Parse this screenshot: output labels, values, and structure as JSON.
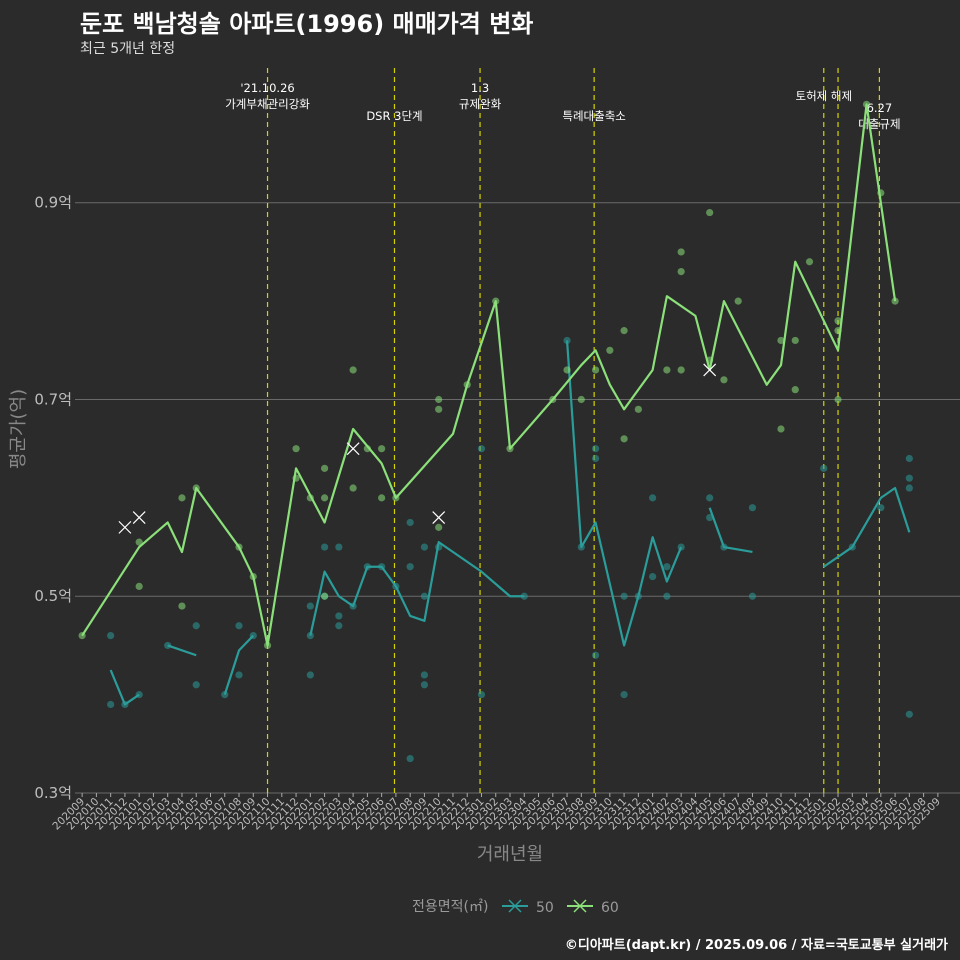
{
  "title": "둔포 백남청솔 아파트(1996) 매매가격 변화",
  "subtitle": "최근 5개년 한정",
  "caption": "©디아파트(dapt.kr) / 2025.09.06 / 자료=국토교통부 실거래가",
  "colors": {
    "background": "#2b2b2b",
    "s50": "#2a9d9a",
    "s60": "#8be07a",
    "event": "#d4d400",
    "grid": "#6a6a6a"
  },
  "chart_data": {
    "type": "line",
    "title": "둔포 백남청솔 아파트(1996) 매매가격 변화",
    "xlabel": "거래년월",
    "ylabel": "평균가(억)",
    "ylim": [
      0.3,
      1.04
    ],
    "yticks": [
      0.3,
      0.5,
      0.7,
      0.9
    ],
    "ytick_labels": [
      "0.3억",
      "0.5억",
      "0.7억",
      "0.9억"
    ],
    "x": [
      "202009",
      "202010",
      "202011",
      "202012",
      "202101",
      "202102",
      "202103",
      "202104",
      "202105",
      "202106",
      "202107",
      "202108",
      "202109",
      "202110",
      "202111",
      "202112",
      "202201",
      "202202",
      "202203",
      "202204",
      "202205",
      "202206",
      "202207",
      "202208",
      "202209",
      "202210",
      "202211",
      "202212",
      "202301",
      "202302",
      "202303",
      "202304",
      "202305",
      "202306",
      "202307",
      "202308",
      "202309",
      "202310",
      "202311",
      "202312",
      "202401",
      "202402",
      "202403",
      "202404",
      "202405",
      "202406",
      "202407",
      "202408",
      "202409",
      "202410",
      "202411",
      "202412",
      "202501",
      "202502",
      "202503",
      "202504",
      "202505",
      "202506",
      "202507",
      "202508",
      "202509"
    ],
    "legend_title": "전용면적(㎡)",
    "series": [
      {
        "name": "50",
        "color": "#2a9d9a",
        "line": [
          [
            2,
            0.425
          ],
          [
            3,
            0.39
          ],
          [
            4,
            0.4
          ],
          null,
          [
            6,
            0.45
          ],
          [
            8,
            0.44
          ],
          null,
          [
            10,
            0.4
          ],
          [
            11,
            0.445
          ],
          [
            12,
            0.46
          ],
          null,
          [
            16,
            0.46
          ],
          [
            17,
            0.525
          ],
          [
            18,
            0.5
          ],
          [
            19,
            0.49
          ],
          [
            20,
            0.53
          ],
          [
            21,
            0.53
          ],
          [
            22,
            0.51
          ],
          [
            23,
            0.48
          ],
          [
            24,
            0.475
          ],
          [
            25,
            0.555
          ],
          [
            28,
            0.525
          ],
          [
            30,
            0.5
          ],
          [
            31,
            0.5
          ],
          null,
          [
            34,
            0.76
          ],
          [
            35,
            0.55
          ],
          [
            36,
            0.575
          ],
          [
            38,
            0.45
          ],
          [
            39,
            0.5
          ],
          [
            40,
            0.56
          ],
          [
            41,
            0.515
          ],
          [
            42,
            0.55
          ],
          null,
          [
            44,
            0.59
          ],
          [
            45,
            0.55
          ],
          [
            47,
            0.545
          ],
          null,
          [
            52,
            0.53
          ],
          [
            54,
            0.55
          ],
          [
            56,
            0.6
          ],
          [
            57,
            0.61
          ],
          [
            58,
            0.565
          ]
        ],
        "points": [
          [
            2,
            0.46
          ],
          [
            2,
            0.39
          ],
          [
            3,
            0.39
          ],
          [
            4,
            0.4
          ],
          [
            6,
            0.45
          ],
          [
            8,
            0.47
          ],
          [
            8,
            0.41
          ],
          [
            10,
            0.4
          ],
          [
            11,
            0.47
          ],
          [
            11,
            0.42
          ],
          [
            12,
            0.46
          ],
          [
            16,
            0.49
          ],
          [
            16,
            0.46
          ],
          [
            16,
            0.42
          ],
          [
            17,
            0.55
          ],
          [
            17,
            0.5
          ],
          [
            18,
            0.55
          ],
          [
            18,
            0.48
          ],
          [
            18,
            0.47
          ],
          [
            19,
            0.49
          ],
          [
            20,
            0.53
          ],
          [
            21,
            0.53
          ],
          [
            22,
            0.51
          ],
          [
            23,
            0.575
          ],
          [
            23,
            0.53
          ],
          [
            23,
            0.335
          ],
          [
            24,
            0.55
          ],
          [
            24,
            0.5
          ],
          [
            24,
            0.42
          ],
          [
            24,
            0.41
          ],
          [
            25,
            0.55
          ],
          [
            28,
            0.65
          ],
          [
            28,
            0.4
          ],
          [
            31,
            0.5
          ],
          [
            34,
            0.76
          ],
          [
            35,
            0.55
          ],
          [
            36,
            0.65
          ],
          [
            36,
            0.64
          ],
          [
            36,
            0.44
          ],
          [
            38,
            0.5
          ],
          [
            38,
            0.4
          ],
          [
            39,
            0.5
          ],
          [
            40,
            0.6
          ],
          [
            40,
            0.52
          ],
          [
            41,
            0.53
          ],
          [
            41,
            0.5
          ],
          [
            42,
            0.55
          ],
          [
            44,
            0.6
          ],
          [
            44,
            0.58
          ],
          [
            45,
            0.55
          ],
          [
            47,
            0.59
          ],
          [
            47,
            0.5
          ],
          [
            52,
            0.63
          ],
          [
            54,
            0.55
          ],
          [
            56,
            0.59
          ],
          [
            58,
            0.64
          ],
          [
            58,
            0.62
          ],
          [
            58,
            0.61
          ],
          [
            58,
            0.38
          ]
        ],
        "cancelled": []
      },
      {
        "name": "60",
        "color": "#8be07a",
        "line": [
          [
            0,
            0.46
          ],
          [
            4,
            0.55
          ],
          [
            6,
            0.575
          ],
          [
            7,
            0.545
          ],
          [
            8,
            0.61
          ],
          [
            11,
            0.55
          ],
          [
            12,
            0.52
          ],
          [
            13,
            0.45
          ],
          [
            15,
            0.63
          ],
          [
            17,
            0.575
          ],
          [
            19,
            0.67
          ],
          [
            21,
            0.635
          ],
          [
            22,
            0.6
          ],
          [
            26,
            0.665
          ],
          [
            27,
            0.715
          ],
          [
            29,
            0.8
          ],
          [
            30,
            0.65
          ],
          [
            33,
            0.7
          ],
          [
            35,
            0.735
          ],
          [
            36,
            0.75
          ],
          [
            37,
            0.715
          ],
          [
            38,
            0.69
          ],
          [
            40,
            0.73
          ],
          [
            41,
            0.805
          ],
          [
            43,
            0.785
          ],
          [
            44,
            0.73
          ],
          [
            45,
            0.8
          ],
          [
            48,
            0.715
          ],
          [
            49,
            0.735
          ],
          [
            50,
            0.84
          ],
          [
            53,
            0.75
          ],
          [
            55,
            1.0
          ],
          [
            57,
            0.8
          ]
        ],
        "points": [
          [
            0,
            0.46
          ],
          [
            4,
            0.555
          ],
          [
            4,
            0.51
          ],
          [
            7,
            0.6
          ],
          [
            7,
            0.49
          ],
          [
            8,
            0.61
          ],
          [
            11,
            0.55
          ],
          [
            12,
            0.52
          ],
          [
            13,
            0.45
          ],
          [
            15,
            0.65
          ],
          [
            15,
            0.62
          ],
          [
            16,
            0.6
          ],
          [
            17,
            0.63
          ],
          [
            17,
            0.6
          ],
          [
            17,
            0.5
          ],
          [
            19,
            0.73
          ],
          [
            19,
            0.61
          ],
          [
            20,
            0.65
          ],
          [
            21,
            0.65
          ],
          [
            21,
            0.6
          ],
          [
            22,
            0.6
          ],
          [
            25,
            0.7
          ],
          [
            25,
            0.69
          ],
          [
            25,
            0.57
          ],
          [
            27,
            0.715
          ],
          [
            29,
            0.8
          ],
          [
            30,
            0.65
          ],
          [
            33,
            0.7
          ],
          [
            34,
            0.73
          ],
          [
            35,
            0.7
          ],
          [
            36,
            0.73
          ],
          [
            37,
            0.75
          ],
          [
            38,
            0.77
          ],
          [
            38,
            0.66
          ],
          [
            39,
            0.69
          ],
          [
            41,
            0.73
          ],
          [
            42,
            0.85
          ],
          [
            42,
            0.83
          ],
          [
            42,
            0.73
          ],
          [
            44,
            0.89
          ],
          [
            44,
            0.74
          ],
          [
            45,
            0.72
          ],
          [
            46,
            0.8
          ],
          [
            49,
            0.76
          ],
          [
            49,
            0.67
          ],
          [
            50,
            0.76
          ],
          [
            50,
            0.71
          ],
          [
            51,
            0.84
          ],
          [
            53,
            0.78
          ],
          [
            53,
            0.77
          ],
          [
            53,
            0.7
          ],
          [
            55,
            1.0
          ],
          [
            56,
            0.91
          ],
          [
            57,
            0.8
          ]
        ],
        "cancelled": [
          [
            3,
            0.57
          ],
          [
            4,
            0.58
          ],
          [
            19,
            0.65
          ],
          [
            25,
            0.58
          ],
          [
            44,
            0.73
          ]
        ]
      }
    ],
    "events": [
      {
        "x": 13,
        "lines": [
          "'21.10.26",
          "가계부채관리강화"
        ]
      },
      {
        "x": 21.9,
        "lines": [
          "DSR 3단계"
        ]
      },
      {
        "x": 27.9,
        "lines": [
          "1.3",
          "규제완화"
        ]
      },
      {
        "x": 35.9,
        "lines": [
          "특례대출축소"
        ]
      },
      {
        "x": 52,
        "lines": [
          "토허제 해제"
        ]
      },
      {
        "x": 53,
        "lines": []
      },
      {
        "x": 55.9,
        "lines": [
          "6.27",
          "대출규제"
        ]
      }
    ],
    "legend_entries": [
      "50",
      "60"
    ]
  }
}
